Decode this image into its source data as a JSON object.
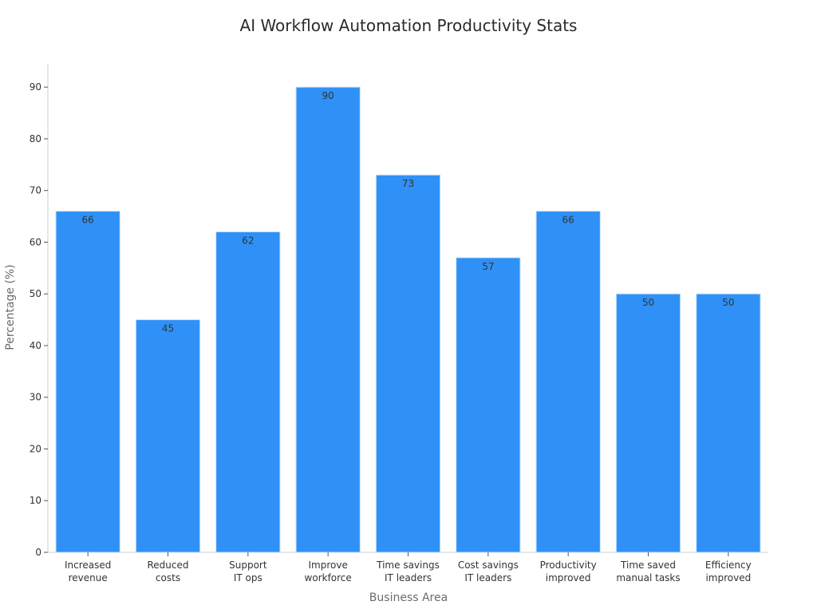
{
  "chart_data": {
    "type": "bar",
    "title": "AI Workflow Automation Productivity Stats",
    "xlabel": "Business Area",
    "ylabel": "Percentage (%)",
    "categories": [
      [
        "Increased",
        "revenue"
      ],
      [
        "Reduced",
        "costs"
      ],
      [
        "Support",
        "IT ops"
      ],
      [
        "Improve",
        "workforce"
      ],
      [
        "Time savings",
        "IT leaders"
      ],
      [
        "Cost savings",
        "IT leaders"
      ],
      [
        "Productivity",
        "improved"
      ],
      [
        "Time saved",
        "manual tasks"
      ],
      [
        "Efficiency",
        "improved"
      ]
    ],
    "values": [
      66,
      45,
      62,
      90,
      73,
      57,
      66,
      50,
      50
    ],
    "data_labels": [
      "66",
      "45",
      "62",
      "90",
      "73",
      "57",
      "66",
      "50",
      "50"
    ],
    "y_ticks": [
      0,
      10,
      20,
      30,
      40,
      50,
      60,
      70,
      80,
      90
    ],
    "y_tick_labels": [
      "0",
      "10",
      "20",
      "30",
      "40",
      "50",
      "60",
      "70",
      "80",
      "90"
    ],
    "ylim": [
      0,
      94.5
    ],
    "grid": false,
    "bar_color": "#2f91f7",
    "bar_edge_color": "#c9e1fb"
  }
}
